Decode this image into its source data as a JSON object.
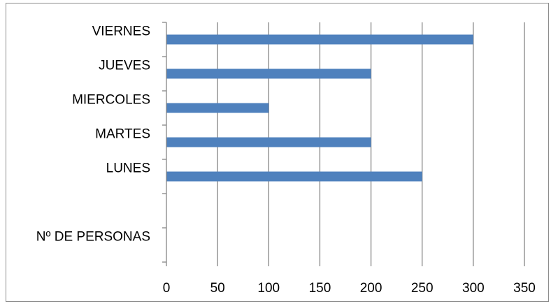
{
  "chart_data": {
    "type": "bar",
    "orientation": "horizontal",
    "categories": [
      "VIERNES",
      "JUEVES",
      "MIERCOLES",
      "MARTES",
      "LUNES",
      "",
      "Nº DE PERSONAS"
    ],
    "values": [
      300,
      200,
      100,
      200,
      250,
      null,
      null
    ],
    "xlim": [
      0,
      350
    ],
    "xticks": [
      "0",
      "50",
      "100",
      "150",
      "200",
      "250",
      "300",
      "350"
    ],
    "grid": true,
    "legend": "none",
    "title": "",
    "xlabel": "",
    "ylabel": "",
    "colors": {
      "bar": "#4f81bd",
      "grid": "#868686",
      "axis": "#868686",
      "frame": "#8c8c8c"
    }
  }
}
